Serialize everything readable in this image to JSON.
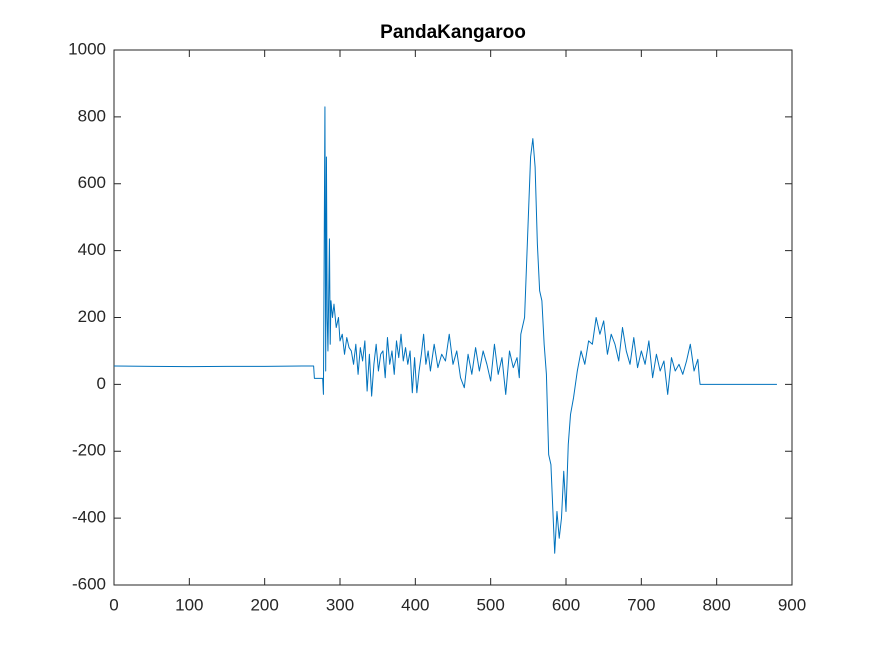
{
  "chart_data": {
    "type": "line",
    "title": "PandaKangaroo",
    "series": [
      {
        "color": "#0072bd",
        "x": [
          0,
          50,
          100,
          150,
          200,
          250,
          265,
          266,
          277,
          278,
          280,
          281,
          282,
          283,
          284,
          286,
          287,
          288,
          290,
          292,
          295,
          298,
          300,
          303,
          306,
          309,
          312,
          315,
          318,
          321,
          324,
          327,
          330,
          333,
          336,
          339,
          342,
          345,
          348,
          351,
          354,
          357,
          360,
          363,
          366,
          369,
          372,
          375,
          378,
          381,
          384,
          387,
          390,
          393,
          396,
          399,
          402,
          405,
          408,
          411,
          414,
          417,
          420,
          425,
          430,
          435,
          440,
          445,
          450,
          455,
          460,
          465,
          470,
          475,
          480,
          485,
          490,
          495,
          500,
          505,
          510,
          515,
          520,
          525,
          530,
          535,
          538,
          540,
          545,
          550,
          553,
          556,
          559,
          562,
          565,
          568,
          571,
          574,
          577,
          580,
          583,
          585,
          588,
          591,
          594,
          597,
          600,
          603,
          606,
          610,
          615,
          620,
          625,
          630,
          635,
          640,
          645,
          650,
          655,
          660,
          665,
          670,
          675,
          680,
          685,
          690,
          695,
          700,
          705,
          710,
          715,
          720,
          725,
          730,
          735,
          740,
          745,
          750,
          755,
          760,
          765,
          770,
          775,
          777,
          778,
          800,
          850,
          880
        ],
        "values": [
          55,
          54,
          53,
          54,
          54,
          55,
          55,
          18,
          18,
          -30,
          830,
          40,
          680,
          200,
          100,
          435,
          120,
          250,
          200,
          240,
          170,
          200,
          130,
          150,
          90,
          140,
          110,
          100,
          60,
          120,
          30,
          110,
          70,
          130,
          -20,
          90,
          -35,
          60,
          120,
          40,
          90,
          100,
          20,
          140,
          60,
          100,
          30,
          130,
          80,
          150,
          70,
          110,
          60,
          100,
          -25,
          80,
          -25,
          40,
          90,
          150,
          60,
          100,
          40,
          120,
          50,
          90,
          70,
          150,
          60,
          100,
          20,
          -10,
          90,
          30,
          110,
          40,
          100,
          60,
          10,
          120,
          30,
          80,
          -30,
          100,
          50,
          80,
          20,
          150,
          200,
          500,
          680,
          735,
          650,
          420,
          280,
          250,
          120,
          30,
          -210,
          -240,
          -400,
          -505,
          -380,
          -460,
          -400,
          -260,
          -380,
          -180,
          -90,
          -40,
          40,
          100,
          60,
          130,
          120,
          200,
          150,
          190,
          90,
          150,
          120,
          70,
          170,
          100,
          60,
          140,
          50,
          100,
          60,
          130,
          20,
          90,
          40,
          70,
          -30,
          80,
          40,
          60,
          30,
          70,
          120,
          40,
          75,
          20,
          0,
          0,
          0,
          0
        ]
      }
    ],
    "xlim": [
      0,
      900
    ],
    "xticks": [
      0,
      100,
      200,
      300,
      400,
      500,
      600,
      700,
      800,
      900
    ],
    "ylim": [
      -600,
      1000
    ],
    "yticks": [
      -600,
      -400,
      -200,
      0,
      200,
      400,
      600,
      800,
      1000
    ]
  }
}
